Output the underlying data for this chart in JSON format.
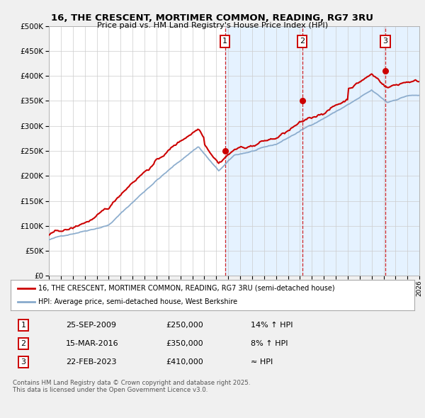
{
  "title": "16, THE CRESCENT, MORTIMER COMMON, READING, RG7 3RU",
  "subtitle": "Price paid vs. HM Land Registry's House Price Index (HPI)",
  "legend_red": "16, THE CRESCENT, MORTIMER COMMON, READING, RG7 3RU (semi-detached house)",
  "legend_blue": "HPI: Average price, semi-detached house, West Berkshire",
  "transactions": [
    {
      "num": "1",
      "date": "25-SEP-2009",
      "price": "£250,000",
      "hpi_diff": "14% ↑ HPI",
      "year": 2009.73,
      "val": 250000
    },
    {
      "num": "2",
      "date": "15-MAR-2016",
      "price": "£350,000",
      "hpi_diff": "8% ↑ HPI",
      "year": 2016.2,
      "val": 350000
    },
    {
      "num": "3",
      "date": "22-FEB-2023",
      "price": "£410,000",
      "hpi_diff": "≈ HPI",
      "year": 2023.14,
      "val": 410000
    }
  ],
  "xmin": 1995,
  "xmax": 2026,
  "ymin": 0,
  "ymax": 500000,
  "yticks": [
    0,
    50000,
    100000,
    150000,
    200000,
    250000,
    300000,
    350000,
    400000,
    450000,
    500000
  ],
  "red_color": "#cc0000",
  "blue_color": "#88aacc",
  "shade_color": "#ddeeff",
  "grid_color": "#cccccc",
  "bg_color": "#f0f0f0",
  "plot_bg": "#ffffff",
  "footnote": "Contains HM Land Registry data © Crown copyright and database right 2025.\nThis data is licensed under the Open Government Licence v3.0."
}
